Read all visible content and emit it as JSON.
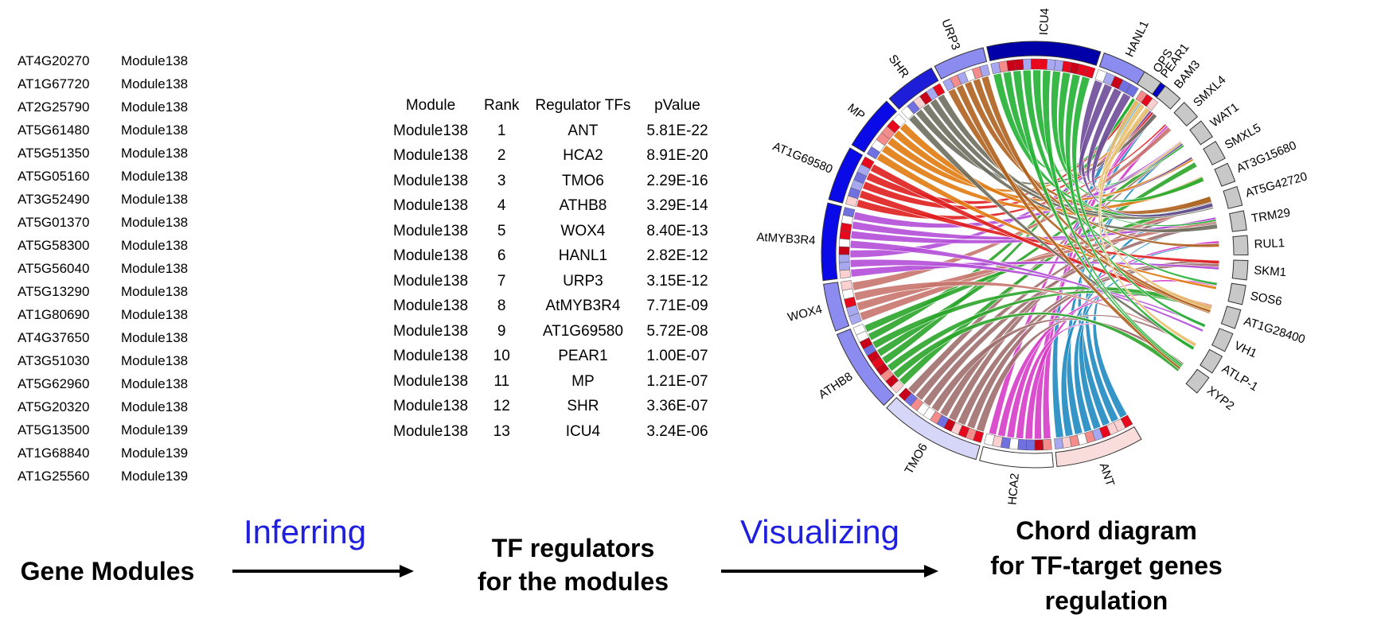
{
  "gene_modules": [
    {
      "gene": "AT4G20270",
      "module": "Module138"
    },
    {
      "gene": "AT1G67720",
      "module": "Module138"
    },
    {
      "gene": "AT2G25790",
      "module": "Module138"
    },
    {
      "gene": "AT5G61480",
      "module": "Module138"
    },
    {
      "gene": "AT5G51350",
      "module": "Module138"
    },
    {
      "gene": "AT5G05160",
      "module": "Module138"
    },
    {
      "gene": "AT3G52490",
      "module": "Module138"
    },
    {
      "gene": "AT5G01370",
      "module": "Module138"
    },
    {
      "gene": "AT5G58300",
      "module": "Module138"
    },
    {
      "gene": "AT5G56040",
      "module": "Module138"
    },
    {
      "gene": "AT5G13290",
      "module": "Module138"
    },
    {
      "gene": "AT1G80690",
      "module": "Module138"
    },
    {
      "gene": "AT4G37650",
      "module": "Module138"
    },
    {
      "gene": "AT3G51030",
      "module": "Module138"
    },
    {
      "gene": "AT5G62960",
      "module": "Module138"
    },
    {
      "gene": "AT5G20320",
      "module": "Module138"
    },
    {
      "gene": "AT5G13500",
      "module": "Module139"
    },
    {
      "gene": "AT1G68840",
      "module": "Module139"
    },
    {
      "gene": "AT1G25560",
      "module": "Module139"
    }
  ],
  "regulator_table": {
    "headers": [
      "Module",
      "Rank",
      "Regulator TFs",
      "pValue"
    ],
    "rows": [
      [
        "Module138",
        "1",
        "ANT",
        "5.81E-22"
      ],
      [
        "Module138",
        "2",
        "HCA2",
        "8.91E-20"
      ],
      [
        "Module138",
        "3",
        "TMO6",
        "2.29E-16"
      ],
      [
        "Module138",
        "4",
        "ATHB8",
        "3.29E-14"
      ],
      [
        "Module138",
        "5",
        "WOX4",
        "8.40E-13"
      ],
      [
        "Module138",
        "6",
        "HANL1",
        "2.82E-12"
      ],
      [
        "Module138",
        "7",
        "URP3",
        "3.15E-12"
      ],
      [
        "Module138",
        "8",
        "AtMYB3R4",
        "7.71E-09"
      ],
      [
        "Module138",
        "9",
        "AT1G69580",
        "5.72E-08"
      ],
      [
        "Module138",
        "10",
        "PEAR1",
        "1.00E-07"
      ],
      [
        "Module138",
        "11",
        "MP",
        "1.21E-07"
      ],
      [
        "Module138",
        "12",
        "SHR",
        "3.36E-07"
      ],
      [
        "Module138",
        "13",
        "ICU4",
        "3.24E-06"
      ]
    ]
  },
  "flow": {
    "step1_label": "Gene Modules",
    "arrow1_label": "Inferring",
    "step2_line1": "TF regulators",
    "step2_line2": "for the modules",
    "arrow2_label": "Visualizing",
    "step3_line1": "Chord diagram",
    "step3_line2": "for TF-target genes",
    "step3_line3": "regulation"
  },
  "chord": {
    "tfs": [
      {
        "name": "ANT",
        "color": "#1f8ac0",
        "band": "#f9dcdc"
      },
      {
        "name": "HCA2",
        "color": "#d63cc8",
        "band": "#ffffff"
      },
      {
        "name": "TMO6",
        "color": "#9e6f6e",
        "band": "#d6d6f8"
      },
      {
        "name": "ATHB8",
        "color": "#2aa52a",
        "band": "#8c8cf0"
      },
      {
        "name": "WOX4",
        "color": "#c8766e",
        "band": "#8c8cf0"
      },
      {
        "name": "AtMYB3R4",
        "color": "#b44cd8",
        "band": "#0a0ae8"
      },
      {
        "name": "AT1G69580",
        "color": "#e01e1e",
        "band": "#0a0ae8"
      },
      {
        "name": "MP",
        "color": "#e07a10",
        "band": "#0a0ae8"
      },
      {
        "name": "SHR",
        "color": "#6e6e5e",
        "band": "#1e1ed8"
      },
      {
        "name": "URP3",
        "color": "#b0621e",
        "band": "#8c8cf0"
      },
      {
        "name": "ICU4",
        "color": "#22b032",
        "band": "#0000a8"
      },
      {
        "name": "HANL1",
        "color": "#6e4a98",
        "band": "#8c8cf0"
      },
      {
        "name": "PEAR1",
        "color": "#e8c070",
        "band": "#0000c8"
      }
    ],
    "targets": [
      "OPS",
      "BAM3",
      "SMXL4",
      "WAT1",
      "SMXL5",
      "AT3G15680",
      "AT5G42720",
      "TRM29",
      "RUL1",
      "SKM1",
      "SOS6",
      "AT1G28400",
      "VH1",
      "ATLP-1",
      "XYP2"
    ],
    "target_color": "#c8c8c8"
  }
}
